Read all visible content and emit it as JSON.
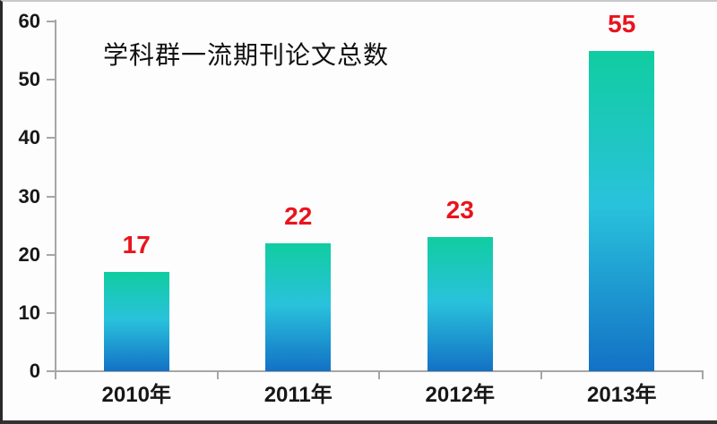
{
  "chart_data": {
    "type": "bar",
    "title": "学科群一流期刊论文总数",
    "categories": [
      "2010年",
      "2011年",
      "2012年",
      "2013年"
    ],
    "values": [
      17,
      22,
      23,
      55
    ],
    "data_labels": [
      "17",
      "22",
      "23",
      "55"
    ],
    "xlabel": "",
    "ylabel": "",
    "ylim": [
      0,
      60
    ],
    "yticks": [
      0,
      10,
      20,
      30,
      40,
      50,
      60
    ],
    "grid": false,
    "legend_position": "none",
    "colors": {
      "bar_gradient_top": "#10cda0",
      "bar_gradient_mid": "#29c2dc",
      "bar_gradient_bottom": "#1371c5",
      "data_label": "#e8141e",
      "axis": "#a6a6a6",
      "text": "#171717"
    }
  }
}
